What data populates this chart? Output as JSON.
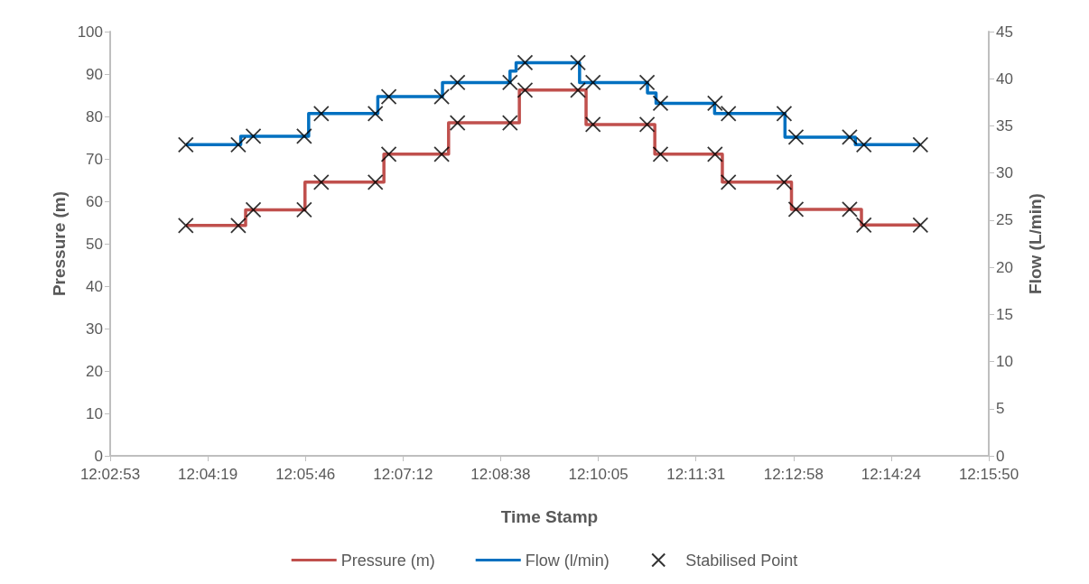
{
  "chart_data": {
    "type": "step",
    "xlabel": "Time Stamp",
    "ylabel": "Pressure (m)",
    "y2label": "Flow (L/min)",
    "legend": "bottom",
    "xlim": [
      12.048,
      12.264
    ],
    "xticks": [
      {
        "value": 12.048,
        "label": "12:02:53"
      },
      {
        "value": 12.072,
        "label": "12:04:19"
      },
      {
        "value": 12.096,
        "label": "12:05:46"
      },
      {
        "value": 12.12,
        "label": "12:07:12"
      },
      {
        "value": 12.144,
        "label": "12:08:38"
      },
      {
        "value": 12.168,
        "label": "12:10:05"
      },
      {
        "value": 12.192,
        "label": "12:11:31"
      },
      {
        "value": 12.216,
        "label": "12:12:58"
      },
      {
        "value": 12.24,
        "label": "12:14:24"
      },
      {
        "value": 12.264,
        "label": "12:15:50"
      }
    ],
    "ylim": [
      0,
      100
    ],
    "yticks": [
      0,
      10,
      20,
      30,
      40,
      50,
      60,
      70,
      80,
      90,
      100
    ],
    "y2lim": [
      0,
      45
    ],
    "y2ticks": [
      0,
      5,
      10,
      15,
      20,
      25,
      30,
      35,
      40,
      45
    ],
    "series": [
      {
        "name": "Pressure (m)",
        "color": "#c0504d",
        "x": [
          12.0666,
          12.0813,
          12.0959,
          12.1153,
          12.1312,
          12.1486,
          12.165,
          12.1819,
          12.1985,
          12.2155,
          12.2327,
          12.2472
        ],
        "values": [
          54.3,
          58.0,
          64.5,
          71.1,
          78.5,
          86.2,
          78.1,
          71.1,
          64.5,
          58.1,
          54.4,
          54.4
        ]
      },
      {
        "name": "Flow (l/min)",
        "axis": "y2",
        "color": "#0070c0",
        "x": [
          12.0666,
          12.0801,
          12.0968,
          12.1138,
          12.1297,
          12.1463,
          12.1478,
          12.1634,
          12.1801,
          12.1822,
          12.1966,
          12.2139,
          12.2312,
          12.2472
        ],
        "values": [
          33.0,
          33.9,
          36.3,
          38.1,
          39.6,
          40.8,
          41.7,
          39.6,
          38.5,
          37.4,
          36.3,
          33.8,
          33.0,
          33.0
        ]
      },
      {
        "name": "Stabilised Point",
        "type": "scatter",
        "marker": "cross",
        "color": "#000000",
        "x": [
          12.0666,
          12.0795,
          12.0832,
          12.0957,
          12.0999,
          12.1132,
          12.1165,
          12.1295,
          12.1334,
          12.1463,
          12.15,
          12.163,
          12.1667,
          12.18,
          12.1833,
          12.1967,
          12.2,
          12.2137,
          12.2166,
          12.2298,
          12.2333,
          12.2472
        ],
        "values": [
          54.3,
          54.3,
          58.0,
          58.0,
          64.5,
          64.5,
          71.1,
          71.1,
          78.5,
          78.5,
          86.2,
          86.2,
          78.1,
          78.1,
          71.1,
          71.1,
          64.5,
          64.5,
          58.1,
          58.1,
          54.4,
          54.4
        ]
      },
      {
        "type": "scatter",
        "axis": "y2",
        "marker": "cross",
        "color": "#000000",
        "x": [
          12.0666,
          12.0795,
          12.0832,
          12.0957,
          12.0999,
          12.1132,
          12.1165,
          12.1295,
          12.1334,
          12.1463,
          12.15,
          12.163,
          12.1667,
          12.18,
          12.1833,
          12.1967,
          12.2,
          12.2137,
          12.2166,
          12.2298,
          12.2333,
          12.2472
        ],
        "values": [
          33.0,
          33.0,
          33.9,
          33.9,
          36.3,
          36.3,
          38.1,
          38.1,
          39.6,
          39.6,
          41.7,
          41.7,
          39.6,
          39.6,
          37.4,
          37.4,
          36.3,
          36.3,
          33.8,
          33.8,
          33.0,
          33.0
        ]
      }
    ]
  }
}
